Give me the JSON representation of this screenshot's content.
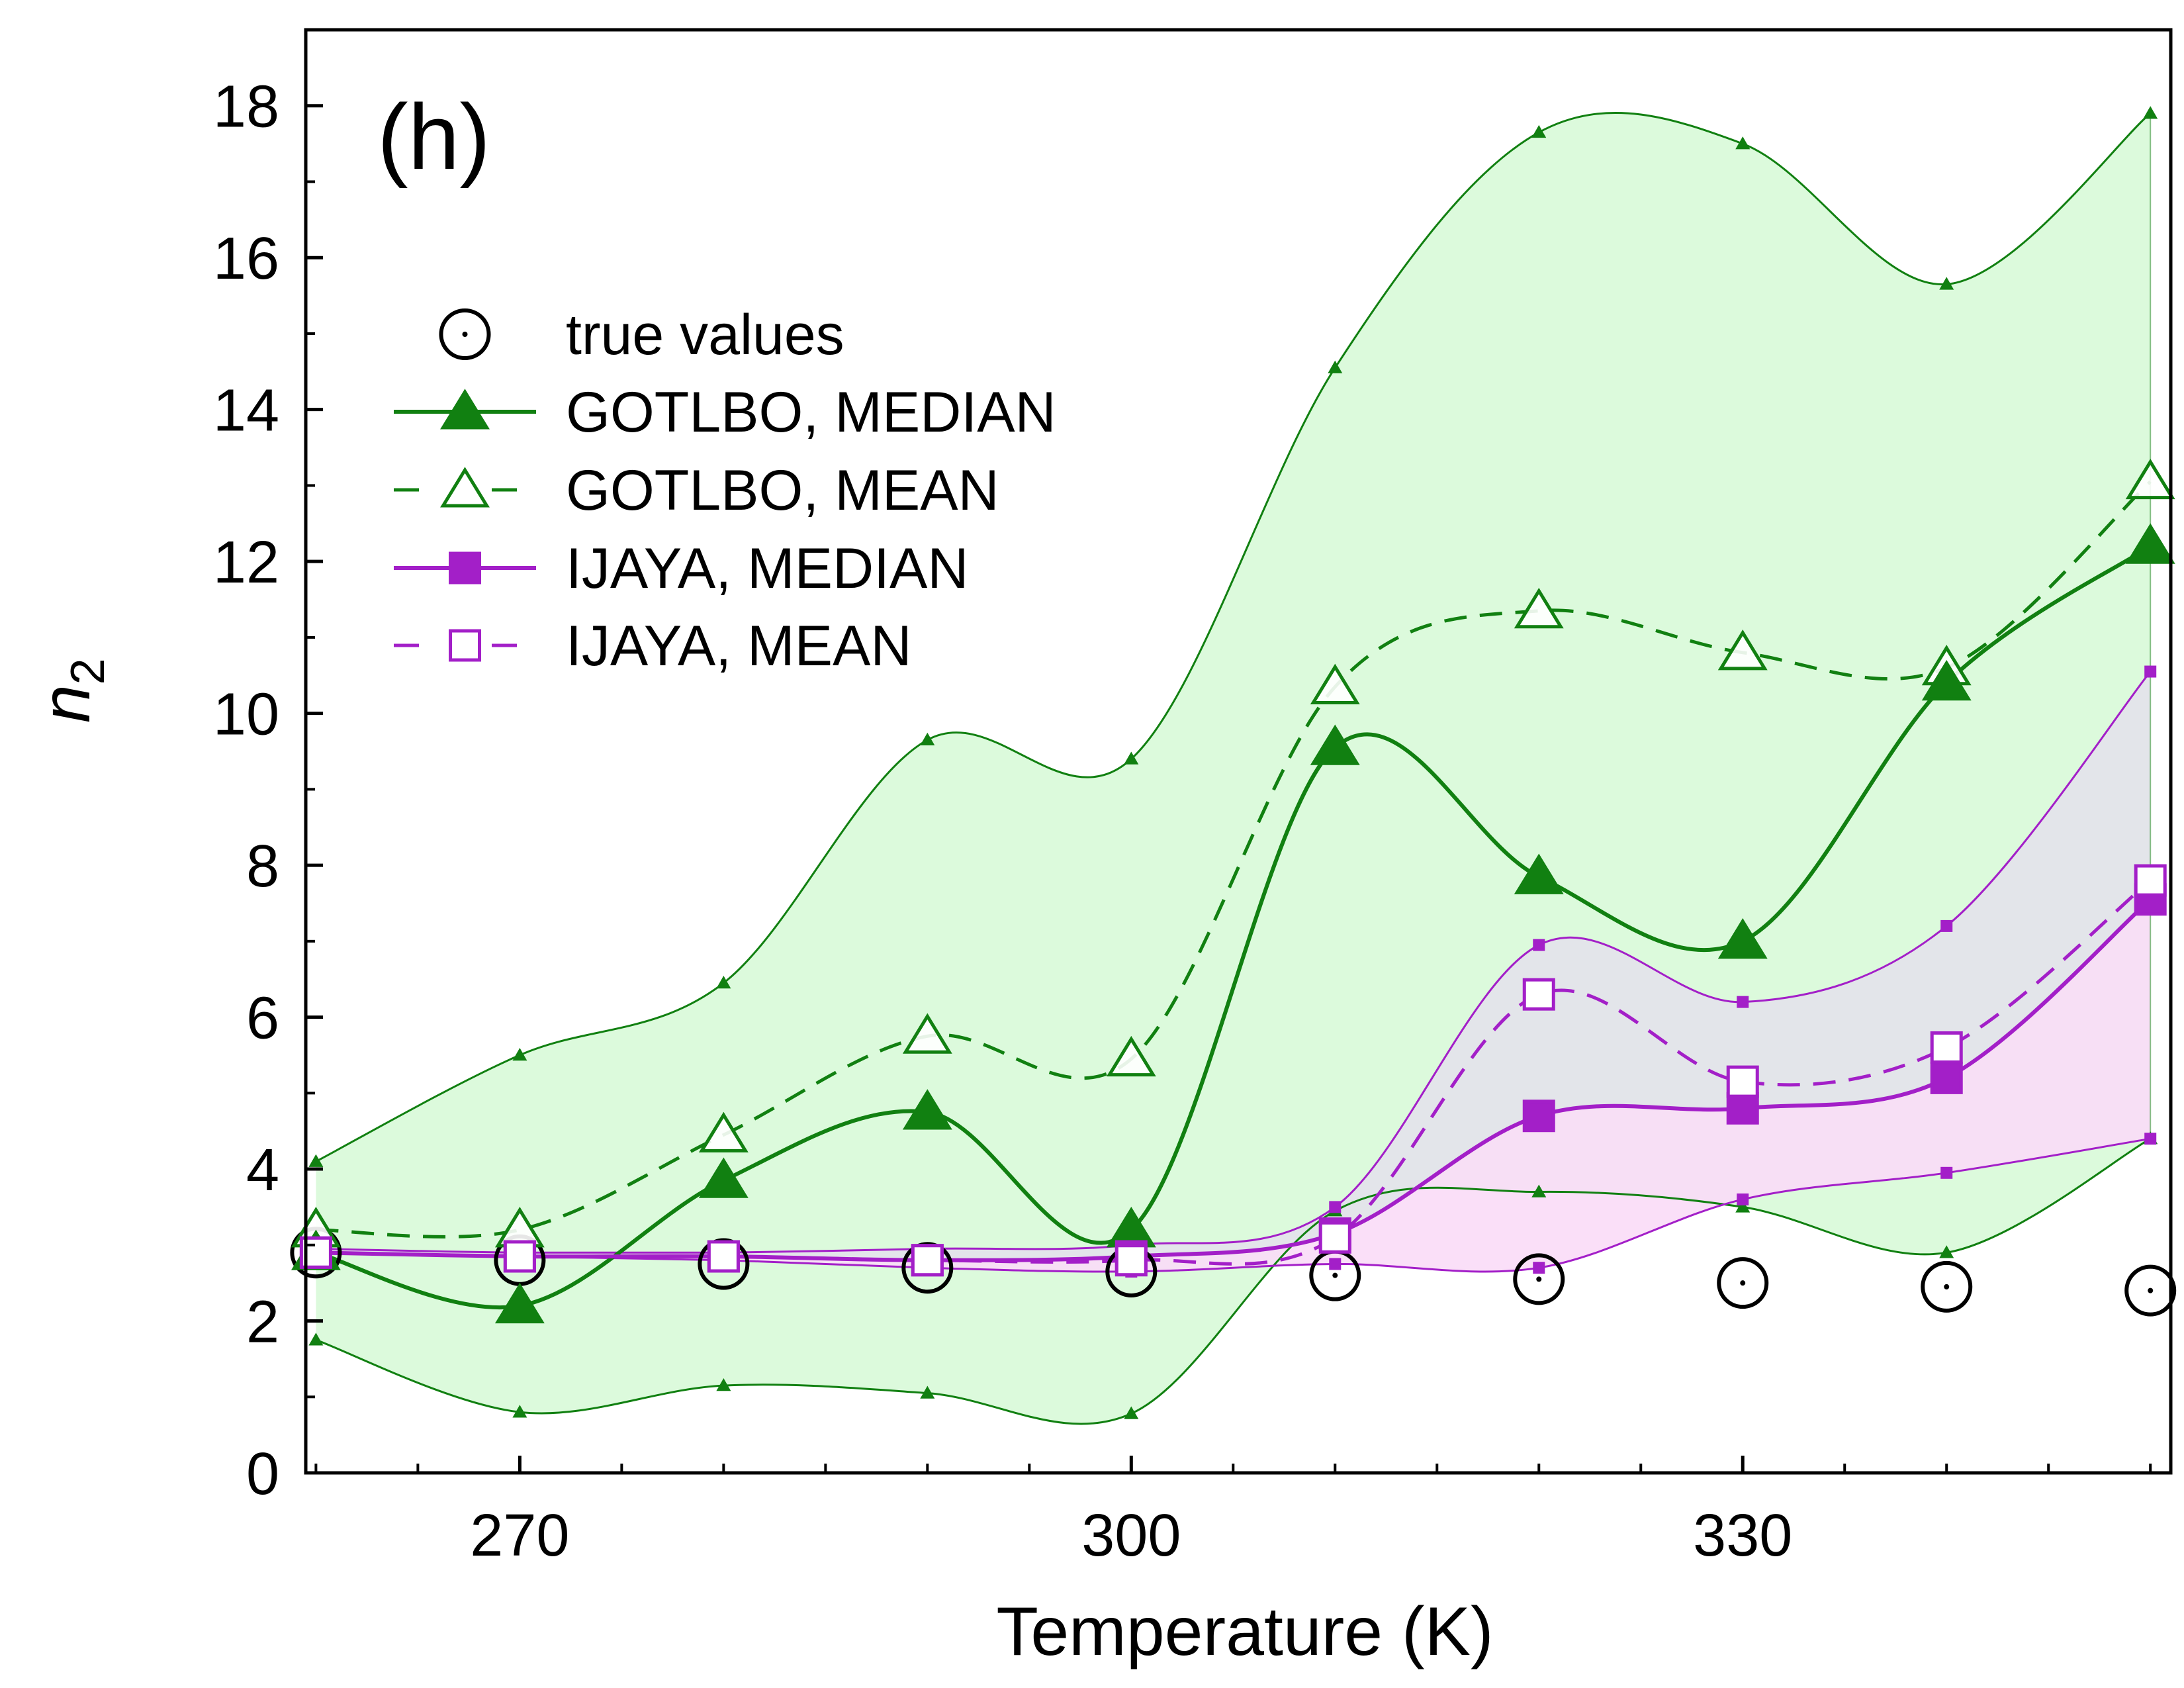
{
  "chart_data": {
    "type": "line",
    "panel_label": "(h)",
    "xlabel": "Temperature (K)",
    "ylabel_main": "n",
    "ylabel_sub": "2",
    "xlim": [
      259.5,
      351
    ],
    "ylim": [
      0,
      19
    ],
    "xticks": [
      270,
      300,
      330
    ],
    "yticks": [
      0,
      2,
      4,
      6,
      8,
      10,
      12,
      14,
      16,
      18
    ],
    "x": [
      260,
      270,
      280,
      290,
      300,
      310,
      320,
      330,
      340,
      350
    ],
    "colors": {
      "gotlbo": "#118011",
      "gotlbo_fill": "#dcfadc",
      "ijaya": "#a31fc8",
      "ijaya_fill_lower": "#fadcf7",
      "ijaya_fill_upper": "#e3e5ea",
      "true": "#000000"
    },
    "bands": [
      {
        "name": "GOTLBO range",
        "upper": [
          4.1,
          5.5,
          6.45,
          9.65,
          9.4,
          14.55,
          17.65,
          17.5,
          15.65,
          17.9
        ],
        "lower": [
          1.75,
          0.8,
          1.15,
          1.05,
          0.78,
          3.45,
          3.7,
          3.5,
          2.9,
          4.4
        ]
      },
      {
        "name": "IJAYA range",
        "upper": [
          2.95,
          2.9,
          2.9,
          2.95,
          3.0,
          3.5,
          6.95,
          6.2,
          7.2,
          10.55
        ],
        "lower": [
          2.9,
          2.85,
          2.8,
          2.7,
          2.65,
          2.75,
          2.7,
          3.6,
          3.95,
          4.4
        ]
      }
    ],
    "series": [
      {
        "name": "true values",
        "values": [
          2.9,
          2.8,
          2.75,
          2.7,
          2.65,
          2.6,
          2.55,
          2.5,
          2.45,
          2.4
        ]
      },
      {
        "name": "GOTLBO, MEDIAN",
        "values": [
          2.9,
          2.2,
          3.85,
          4.75,
          3.2,
          9.55,
          7.85,
          7.0,
          10.4,
          12.2
        ]
      },
      {
        "name": "GOTLBO, MEAN",
        "values": [
          3.2,
          3.2,
          4.45,
          5.75,
          5.45,
          10.35,
          11.35,
          10.8,
          10.6,
          13.05
        ]
      },
      {
        "name": "IJAYA, MEDIAN",
        "values": [
          2.9,
          2.85,
          2.85,
          2.8,
          2.85,
          3.15,
          4.7,
          4.8,
          5.2,
          7.55
        ]
      },
      {
        "name": "IJAYA, MEAN",
        "values": [
          2.9,
          2.85,
          2.85,
          2.8,
          2.8,
          3.1,
          6.3,
          5.15,
          5.6,
          7.8
        ]
      }
    ]
  }
}
